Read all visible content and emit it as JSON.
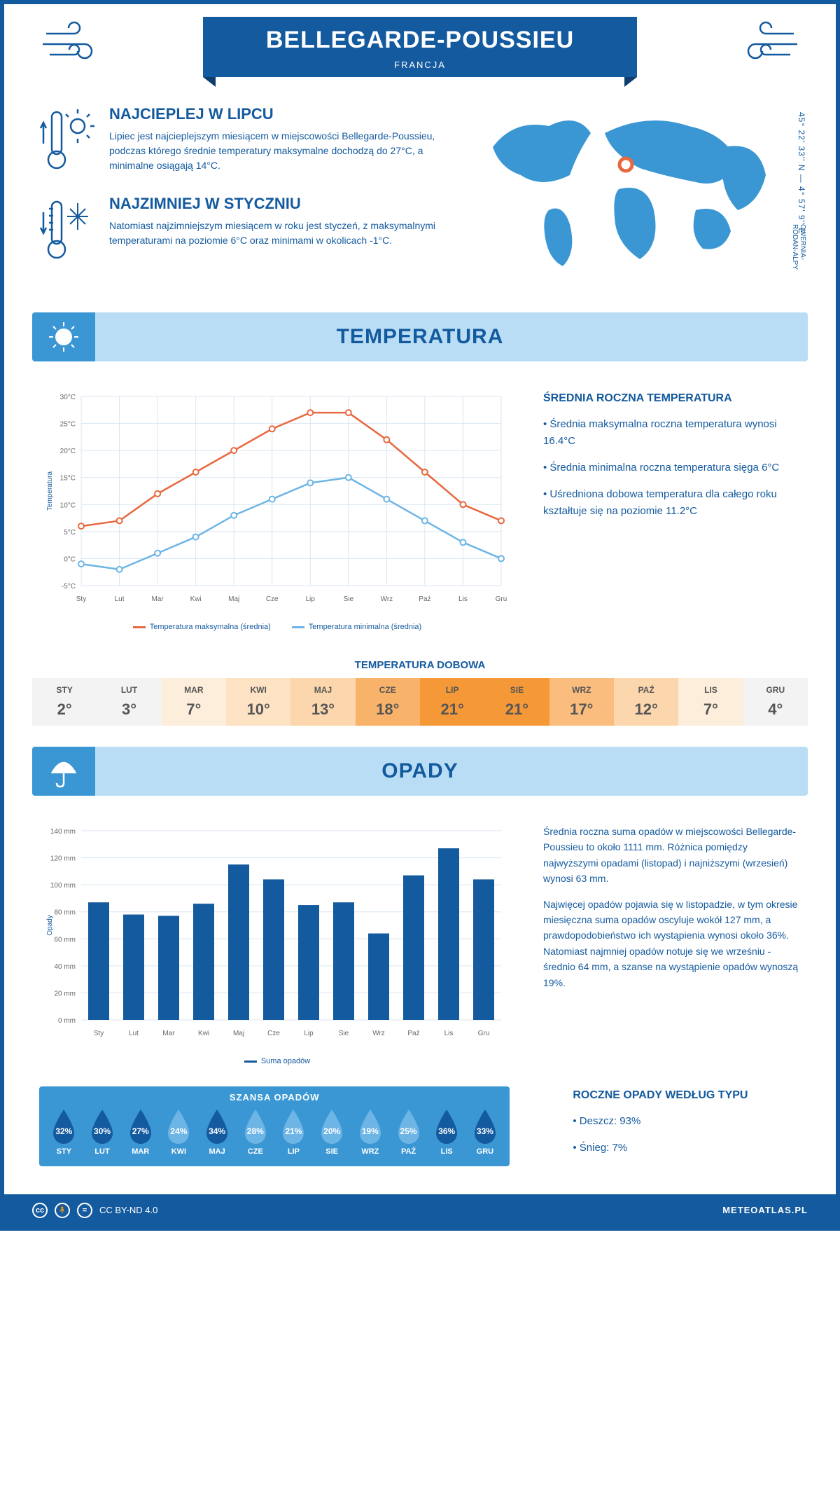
{
  "header": {
    "title": "BELLEGARDE-POUSSIEU",
    "subtitle": "FRANCJA"
  },
  "coords": "45° 22' 33'' N — 4° 57' 9'' E",
  "region": "OWERNIA-RODAN-ALPY",
  "warmest": {
    "title": "NAJCIEPLEJ W LIPCU",
    "text": "Lipiec jest najcieplejszym miesiącem w miejscowości Bellegarde-Poussieu, podczas którego średnie temperatury maksymalne dochodzą do 27°C, a minimalne osiągają 14°C."
  },
  "coldest": {
    "title": "NAJZIMNIEJ W STYCZNIU",
    "text": "Natomiast najzimniejszym miesiącem w roku jest styczeń, z maksymalnymi temperaturami na poziomie 6°C oraz minimami w okolicach -1°C."
  },
  "sections": {
    "temperature": "TEMPERATURA",
    "precipitation": "OPADY"
  },
  "tempChart": {
    "months": [
      "Sty",
      "Lut",
      "Mar",
      "Kwi",
      "Maj",
      "Cze",
      "Lip",
      "Sie",
      "Wrz",
      "Paź",
      "Lis",
      "Gru"
    ],
    "max": [
      6,
      7,
      12,
      16,
      20,
      24,
      27,
      27,
      22,
      16,
      10,
      7
    ],
    "min": [
      -1,
      -2,
      1,
      4,
      8,
      11,
      14,
      15,
      11,
      7,
      3,
      0
    ],
    "maxColor": "#e8683f",
    "minColor": "#6db5e5",
    "ylim": [
      -5,
      30
    ],
    "ytick": 5,
    "ylabel": "Temperatura",
    "legendMax": "Temperatura maksymalna (średnia)",
    "legendMin": "Temperatura minimalna (średnia)",
    "gridColor": "#d9e6f2"
  },
  "tempSide": {
    "title": "ŚREDNIA ROCZNA TEMPERATURA",
    "lines": [
      "• Średnia maksymalna roczna temperatura wynosi 16.4°C",
      "• Średnia minimalna roczna temperatura sięga 6°C",
      "• Uśredniona dobowa temperatura dla całego roku kształtuje się na poziomie 11.2°C"
    ]
  },
  "dobowa": {
    "title": "TEMPERATURA DOBOWA",
    "months": [
      "STY",
      "LUT",
      "MAR",
      "KWI",
      "MAJ",
      "CZE",
      "LIP",
      "SIE",
      "WRZ",
      "PAŹ",
      "LIS",
      "GRU"
    ],
    "values": [
      "2°",
      "3°",
      "7°",
      "10°",
      "13°",
      "18°",
      "21°",
      "21°",
      "17°",
      "12°",
      "7°",
      "4°"
    ],
    "colors": [
      "#f3f3f3",
      "#f3f3f3",
      "#fdeedc",
      "#fde2c4",
      "#fcd7ae",
      "#f9b26a",
      "#f59838",
      "#f59838",
      "#fabd7e",
      "#fcd7ae",
      "#fdeedc",
      "#f3f3f3"
    ]
  },
  "precipChart": {
    "months": [
      "Sty",
      "Lut",
      "Mar",
      "Kwi",
      "Maj",
      "Cze",
      "Lip",
      "Sie",
      "Wrz",
      "Paź",
      "Lis",
      "Gru"
    ],
    "values": [
      87,
      78,
      77,
      86,
      115,
      104,
      85,
      87,
      64,
      107,
      127,
      104
    ],
    "barColor": "#145a9e",
    "ylim": [
      0,
      140
    ],
    "ytick": 20,
    "ylabel": "Opady",
    "legend": "Suma opadów",
    "gridColor": "#d9e6f2"
  },
  "precipSide": {
    "p1": "Średnia roczna suma opadów w miejscowości Bellegarde-Poussieu to około 1111 mm. Różnica pomiędzy najwyższymi opadami (listopad) i najniższymi (wrzesień) wynosi 63 mm.",
    "p2": "Najwięcej opadów pojawia się w listopadzie, w tym okresie miesięczna suma opadów oscyluje wokół 127 mm, a prawdopodobieństwo ich wystąpienia wynosi około 36%. Natomiast najmniej opadów notuje się we wrześniu - średnio 64 mm, a szanse na wystąpienie opadów wynoszą 19%."
  },
  "chance": {
    "title": "SZANSA OPADÓW",
    "months": [
      "STY",
      "LUT",
      "MAR",
      "KWI",
      "MAJ",
      "CZE",
      "LIP",
      "SIE",
      "WRZ",
      "PAŹ",
      "LIS",
      "GRU"
    ],
    "pct": [
      "32%",
      "30%",
      "27%",
      "24%",
      "34%",
      "28%",
      "21%",
      "20%",
      "19%",
      "25%",
      "36%",
      "33%"
    ],
    "colors": [
      "#145a9e",
      "#145a9e",
      "#145a9e",
      "#6db5e5",
      "#145a9e",
      "#6db5e5",
      "#6db5e5",
      "#6db5e5",
      "#6db5e5",
      "#6db5e5",
      "#145a9e",
      "#145a9e"
    ]
  },
  "byType": {
    "title": "ROCZNE OPADY WEDŁUG TYPU",
    "rain": "• Deszcz: 93%",
    "snow": "• Śnieg: 7%"
  },
  "footer": {
    "license": "CC BY-ND 4.0",
    "brand": "METEOATLAS.PL"
  }
}
